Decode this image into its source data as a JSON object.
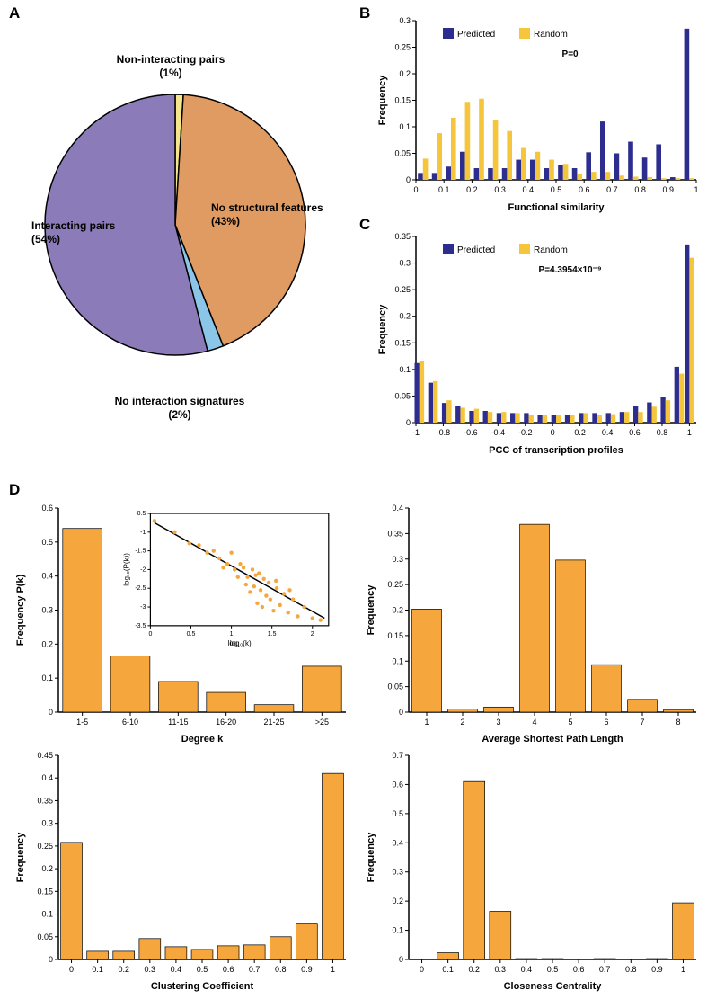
{
  "panelLabels": {
    "A": "A",
    "B": "B",
    "C": "C",
    "D": "D"
  },
  "pie": {
    "slices": [
      {
        "label": "Interacting pairs",
        "pct": 54,
        "color": "#8b7bb8",
        "labelText": "Interacting pairs\n(54%)"
      },
      {
        "label": "No structural features",
        "pct": 43,
        "color": "#e09b63",
        "labelText": "No structural features\n(43%)"
      },
      {
        "label": "No interaction signatures",
        "pct": 2,
        "color": "#8bc5e8",
        "labelText": "No interaction signatures\n(2%)"
      },
      {
        "label": "Non-interacting pairs",
        "pct": 1,
        "color": "#f5e68c",
        "labelText": "Non-interacting pairs\n(1%)"
      }
    ],
    "stroke": "#000000",
    "strokeWidth": 1.5
  },
  "panelB": {
    "xlabel": "Functional similarity",
    "ylabel": "Frequency",
    "ylim": [
      0,
      0.3
    ],
    "yticks": [
      0,
      0.05,
      0.1,
      0.15,
      0.2,
      0.25,
      0.3
    ],
    "xticks": [
      0,
      0.1,
      0.2,
      0.3,
      0.4,
      0.5,
      0.6,
      0.7,
      0.8,
      0.9,
      1
    ],
    "legend": [
      {
        "name": "Predicted",
        "color": "#2d2d8f"
      },
      {
        "name": "Random",
        "color": "#f5c53c"
      }
    ],
    "pvalue": "P=0",
    "predicted": [
      0.013,
      0.013,
      0.025,
      0.053,
      0.022,
      0.022,
      0.022,
      0.038,
      0.038,
      0.022,
      0.028,
      0.022,
      0.052,
      0.11,
      0.05,
      0.072,
      0.042,
      0.067,
      0.005,
      0.285
    ],
    "random": [
      0.04,
      0.088,
      0.117,
      0.147,
      0.153,
      0.112,
      0.092,
      0.06,
      0.053,
      0.038,
      0.03,
      0.012,
      0.015,
      0.015,
      0.008,
      0.006,
      0.005,
      0.003,
      0.003,
      0.003
    ],
    "xpositions": [
      0.025,
      0.075,
      0.125,
      0.175,
      0.225,
      0.275,
      0.325,
      0.375,
      0.425,
      0.475,
      0.525,
      0.575,
      0.625,
      0.675,
      0.725,
      0.775,
      0.825,
      0.875,
      0.925,
      0.975
    ],
    "barWidth": 0.018,
    "fontsize_axis": 10,
    "fontsize_label": 11
  },
  "panelC": {
    "xlabel": "PCC of transcription profiles",
    "ylabel": "Frequency",
    "ylim": [
      0,
      0.35
    ],
    "yticks": [
      0,
      0.05,
      0.1,
      0.15,
      0.2,
      0.25,
      0.3,
      0.35
    ],
    "xticks": [
      -1,
      -0.8,
      -0.6,
      -0.4,
      -0.2,
      0,
      0.2,
      0.4,
      0.6,
      0.8,
      1
    ],
    "legend": [
      {
        "name": "Predicted",
        "color": "#2d2d8f"
      },
      {
        "name": "Random",
        "color": "#f5c53c"
      }
    ],
    "pvalue": "P=4.3954×10⁻⁹",
    "predicted": [
      0.112,
      0.075,
      0.037,
      0.032,
      0.022,
      0.022,
      0.018,
      0.018,
      0.018,
      0.015,
      0.015,
      0.015,
      0.018,
      0.018,
      0.018,
      0.02,
      0.032,
      0.038,
      0.048,
      0.105,
      0.335
    ],
    "random": [
      0.115,
      0.078,
      0.042,
      0.028,
      0.026,
      0.02,
      0.02,
      0.018,
      0.015,
      0.015,
      0.015,
      0.015,
      0.018,
      0.015,
      0.016,
      0.02,
      0.02,
      0.03,
      0.042,
      0.092,
      0.31
    ],
    "xpositions": [
      -0.975,
      -0.875,
      -0.775,
      -0.675,
      -0.575,
      -0.475,
      -0.375,
      -0.275,
      -0.175,
      -0.075,
      0.025,
      0.125,
      0.225,
      0.325,
      0.425,
      0.525,
      0.625,
      0.725,
      0.825,
      0.925,
      1.0
    ],
    "barWidth": 0.035,
    "fontsize_axis": 10,
    "fontsize_label": 11
  },
  "panelD": {
    "barColor": "#f5a63c",
    "barStroke": "#000000",
    "degree": {
      "xlabel": "Degree k",
      "ylabel": "Frequency P(k)",
      "ylim": [
        0,
        0.6
      ],
      "yticks": [
        0,
        0.1,
        0.2,
        0.3,
        0.4,
        0.5,
        0.6
      ],
      "categories": [
        "1-5",
        "6-10",
        "11-15",
        "16-20",
        "21-25",
        ">25"
      ],
      "values": [
        0.54,
        0.165,
        0.09,
        0.058,
        0.022,
        0.135
      ]
    },
    "inset": {
      "xlabel": "log₁₀(k)",
      "ylabel": "log₁₀(P(k))",
      "xlim": [
        0,
        2.2
      ],
      "ylim": [
        -3.5,
        -0.5
      ],
      "xticks": [
        0,
        0.5,
        1,
        1.5,
        2
      ],
      "yticks": [
        -3.5,
        -3,
        -2.5,
        -2,
        -1.5,
        -1,
        -0.5
      ],
      "lineStart": [
        0.05,
        -0.75
      ],
      "lineEnd": [
        2.15,
        -3.3
      ],
      "pointColor": "#f5a63c",
      "points": [
        [
          0.05,
          -0.7
        ],
        [
          0.3,
          -1.0
        ],
        [
          0.48,
          -1.3
        ],
        [
          0.6,
          -1.35
        ],
        [
          0.7,
          -1.55
        ],
        [
          0.78,
          -1.5
        ],
        [
          0.85,
          -1.7
        ],
        [
          0.9,
          -1.95
        ],
        [
          0.95,
          -1.85
        ],
        [
          1.0,
          -1.55
        ],
        [
          1.04,
          -2.0
        ],
        [
          1.08,
          -2.2
        ],
        [
          1.11,
          -1.85
        ],
        [
          1.15,
          -1.95
        ],
        [
          1.18,
          -2.4
        ],
        [
          1.2,
          -2.2
        ],
        [
          1.23,
          -2.6
        ],
        [
          1.26,
          -2.0
        ],
        [
          1.28,
          -2.45
        ],
        [
          1.3,
          -2.15
        ],
        [
          1.32,
          -2.9
        ],
        [
          1.34,
          -2.1
        ],
        [
          1.36,
          -2.55
        ],
        [
          1.38,
          -3.0
        ],
        [
          1.4,
          -2.25
        ],
        [
          1.43,
          -2.7
        ],
        [
          1.46,
          -2.35
        ],
        [
          1.48,
          -2.8
        ],
        [
          1.52,
          -3.1
        ],
        [
          1.56,
          -2.5
        ],
        [
          1.6,
          -2.95
        ],
        [
          1.65,
          -2.65
        ],
        [
          1.7,
          -3.15
        ],
        [
          1.76,
          -2.8
        ],
        [
          1.82,
          -3.25
        ],
        [
          1.9,
          -3.0
        ],
        [
          2.0,
          -3.3
        ],
        [
          2.1,
          -3.35
        ],
        [
          1.55,
          -2.3
        ],
        [
          1.72,
          -2.55
        ]
      ]
    },
    "path": {
      "xlabel": "Average Shortest Path Length",
      "ylabel": "Frequency",
      "ylim": [
        0,
        0.4
      ],
      "yticks": [
        0,
        0.05,
        0.1,
        0.15,
        0.2,
        0.25,
        0.3,
        0.35,
        0.4
      ],
      "categories": [
        "1",
        "2",
        "3",
        "4",
        "5",
        "6",
        "7",
        "8"
      ],
      "values": [
        0.202,
        0.006,
        0.01,
        0.368,
        0.298,
        0.093,
        0.025,
        0.005
      ]
    },
    "clustering": {
      "xlabel": "Clustering Coefficient",
      "ylabel": "Frequency",
      "ylim": [
        0,
        0.45
      ],
      "yticks": [
        0,
        0.05,
        0.1,
        0.15,
        0.2,
        0.25,
        0.3,
        0.35,
        0.4,
        0.45
      ],
      "categories": [
        "0",
        "0.1",
        "0.2",
        "0.3",
        "0.4",
        "0.5",
        "0.6",
        "0.7",
        "0.8",
        "0.9",
        "1"
      ],
      "values": [
        0.258,
        0.018,
        0.018,
        0.046,
        0.028,
        0.022,
        0.03,
        0.032,
        0.05,
        0.078,
        0.41
      ]
    },
    "closeness": {
      "xlabel": "Closeness Centrality",
      "ylabel": "Frequency",
      "ylim": [
        0,
        0.7
      ],
      "yticks": [
        0,
        0.1,
        0.2,
        0.3,
        0.4,
        0.5,
        0.6,
        0.7
      ],
      "categories": [
        "0",
        "0.1",
        "0.2",
        "0.3",
        "0.4",
        "0.5",
        "0.6",
        "0.7",
        "0.8",
        "0.9",
        "1"
      ],
      "values": [
        0.0,
        0.023,
        0.61,
        0.165,
        0.003,
        0.003,
        0.002,
        0.003,
        0.002,
        0.003,
        0.194
      ]
    }
  },
  "colors": {
    "axis": "#000000",
    "text": "#000000",
    "background": "#ffffff"
  },
  "fontsizes": {
    "panelLabel": 17,
    "pieLabel": 12,
    "chartTick": 9,
    "chartLabel": 11,
    "insetTick": 7,
    "insetLabel": 8
  }
}
